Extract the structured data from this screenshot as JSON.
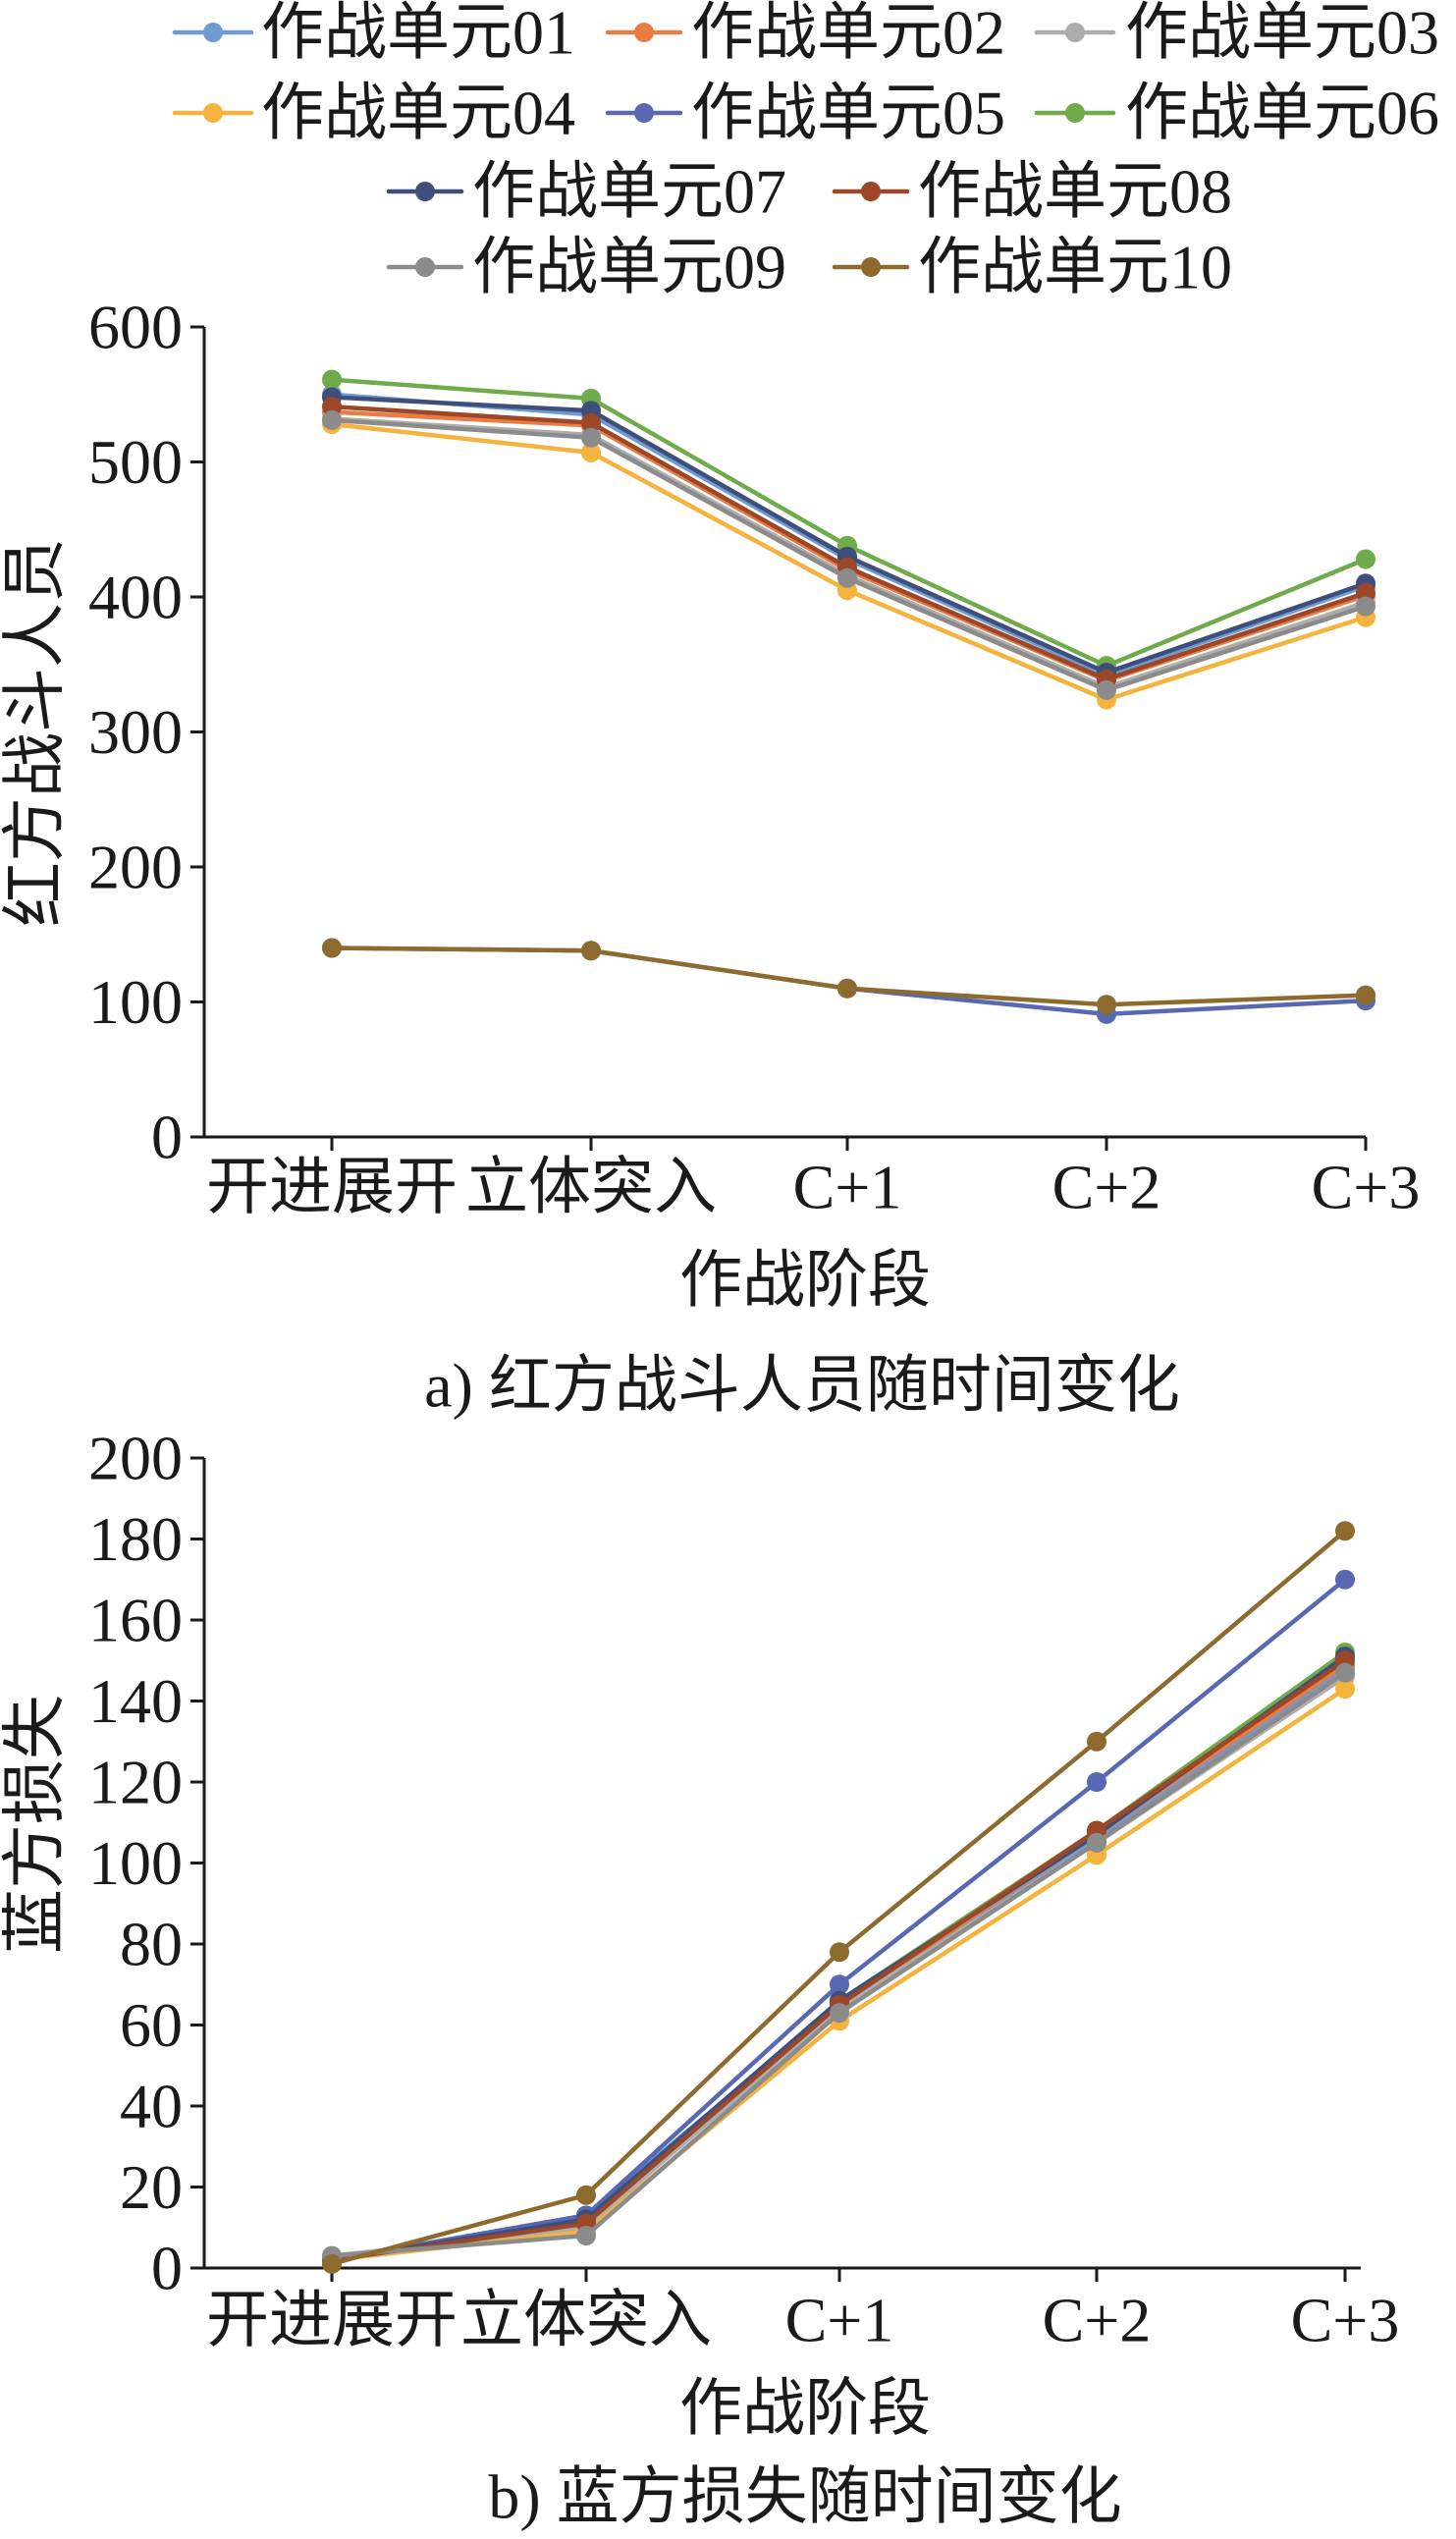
{
  "chart_data": [
    {
      "type": "line",
      "caption": "a) 红方战斗人员随时间变化",
      "xlabel": "作战阶段",
      "ylabel": "红方战斗人员",
      "categories": [
        "开进展开",
        "立体突入",
        "C+1",
        "C+2",
        "C+3"
      ],
      "ylim": [
        0,
        600
      ],
      "yticks": [
        0,
        100,
        200,
        300,
        400,
        500,
        600
      ],
      "grid": false,
      "legend": "top",
      "series": [
        {
          "name": "作战单元01",
          "color": "#6e9bd1",
          "values": [
            550,
            535,
            428,
            342,
            408
          ]
        },
        {
          "name": "作战单元02",
          "color": "#ea7b43",
          "values": [
            537,
            527,
            420,
            338,
            401
          ]
        },
        {
          "name": "作战单元03",
          "color": "#adadad",
          "values": [
            532,
            520,
            416,
            333,
            396
          ]
        },
        {
          "name": "作战单元04",
          "color": "#f5b23c",
          "values": [
            528,
            507,
            405,
            324,
            385
          ]
        },
        {
          "name": "作战单元05",
          "color": "#5868b2",
          "values": [
            140,
            138,
            110,
            91,
            101
          ]
        },
        {
          "name": "作战单元06",
          "color": "#6fab4b",
          "values": [
            561,
            547,
            438,
            349,
            428
          ]
        },
        {
          "name": "作战单元07",
          "color": "#3e4f7c",
          "values": [
            548,
            538,
            430,
            344,
            410
          ]
        },
        {
          "name": "作战单元08",
          "color": "#9b4728",
          "values": [
            541,
            529,
            422,
            339,
            403
          ]
        },
        {
          "name": "作战单元09",
          "color": "#8b8b8b",
          "values": [
            531,
            518,
            414,
            331,
            393
          ]
        },
        {
          "name": "作战单元10",
          "color": "#8d6b2f",
          "values": [
            140,
            138,
            110,
            98,
            105
          ]
        }
      ]
    },
    {
      "type": "line",
      "caption": "b) 蓝方损失随时间变化",
      "xlabel": "作战阶段",
      "ylabel": "蓝方损失",
      "categories": [
        "开进展开",
        "立体突入",
        "C+1",
        "C+2",
        "C+3"
      ],
      "ylim": [
        0,
        200
      ],
      "yticks": [
        0,
        20,
        40,
        60,
        80,
        100,
        120,
        140,
        160,
        180,
        200
      ],
      "grid": false,
      "series": [
        {
          "name": "作战单元01",
          "color": "#6e9bd1",
          "values": [
            2,
            13,
            65,
            106,
            148
          ]
        },
        {
          "name": "作战单元02",
          "color": "#ea7b43",
          "values": [
            2,
            11,
            65,
            107,
            149
          ]
        },
        {
          "name": "作战单元03",
          "color": "#adadad",
          "values": [
            3,
            10,
            64,
            105,
            146
          ]
        },
        {
          "name": "作战单元04",
          "color": "#f5b23c",
          "values": [
            2,
            9,
            61,
            102,
            143
          ]
        },
        {
          "name": "作战单元05",
          "color": "#5868b2",
          "values": [
            2,
            13,
            70,
            120,
            170
          ]
        },
        {
          "name": "作战单元06",
          "color": "#6fab4b",
          "values": [
            2,
            11,
            66,
            108,
            152
          ]
        },
        {
          "name": "作战单元07",
          "color": "#3e4f7c",
          "values": [
            2,
            12,
            66,
            107,
            151
          ]
        },
        {
          "name": "作战单元08",
          "color": "#9b4728",
          "values": [
            2,
            11,
            65,
            108,
            150
          ]
        },
        {
          "name": "作战单元09",
          "color": "#8b8b8b",
          "values": [
            3,
            8,
            63,
            105,
            147
          ]
        },
        {
          "name": "作战单元10",
          "color": "#8d6b2f",
          "values": [
            1,
            18,
            78,
            130,
            182
          ]
        }
      ]
    }
  ]
}
